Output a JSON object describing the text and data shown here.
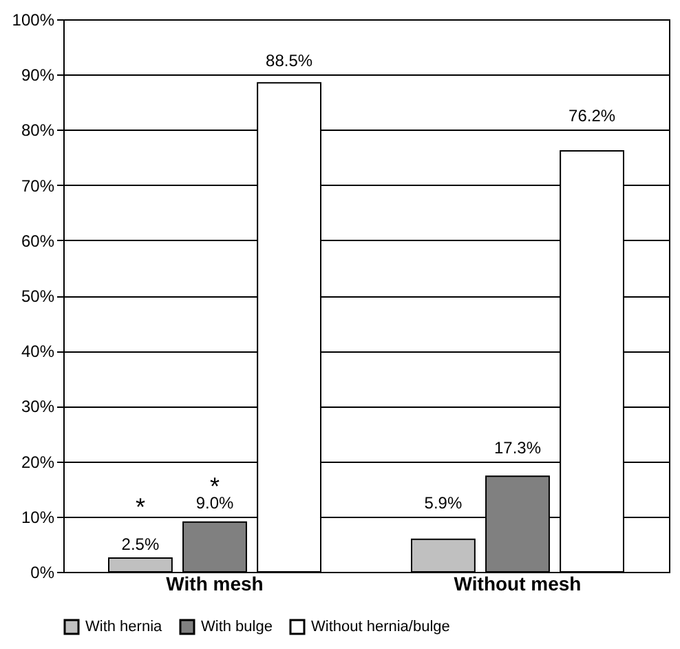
{
  "chart_data": {
    "type": "bar",
    "categories": [
      "With mesh",
      "Without mesh"
    ],
    "series": [
      {
        "name": "With hernia",
        "color": "#c0c0c0",
        "values": [
          2.5,
          5.9
        ],
        "value_labels": [
          "2.5%",
          "5.9%"
        ]
      },
      {
        "name": "With bulge",
        "color": "#808080",
        "values": [
          9.0,
          17.3
        ],
        "value_labels": [
          "9.0%",
          "17.3%"
        ]
      },
      {
        "name": "Without hernia/bulge",
        "color": "#ffffff",
        "values": [
          88.5,
          76.2
        ],
        "value_labels": [
          "88.5%",
          "76.2%"
        ]
      }
    ],
    "ylim": [
      0,
      100
    ],
    "yticks": [
      {
        "value": 0,
        "label": "0%"
      },
      {
        "value": 10,
        "label": "10%"
      },
      {
        "value": 20,
        "label": "20%"
      },
      {
        "value": 30,
        "label": "30%"
      },
      {
        "value": 40,
        "label": "40%"
      },
      {
        "value": 50,
        "label": "50%"
      },
      {
        "value": 60,
        "label": "60%"
      },
      {
        "value": 70,
        "label": "70%"
      },
      {
        "value": 80,
        "label": "80%"
      },
      {
        "value": 90,
        "label": "90%"
      },
      {
        "value": 100,
        "label": "100%"
      }
    ],
    "grid": "y",
    "legend": "bottom",
    "annotations": [
      "*",
      "*"
    ]
  }
}
